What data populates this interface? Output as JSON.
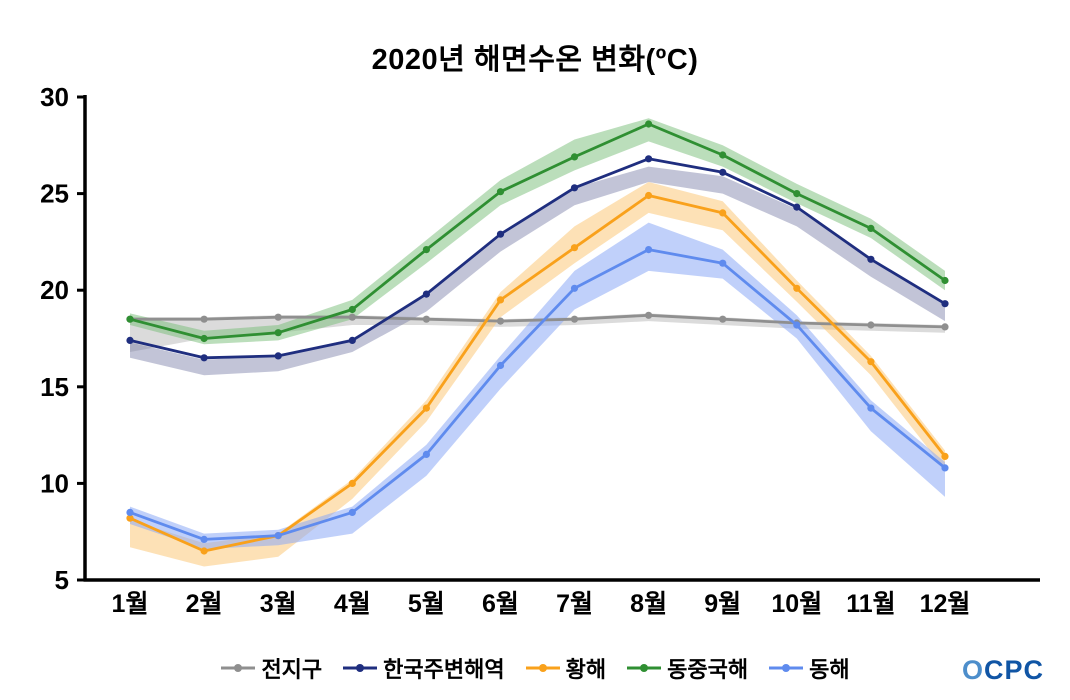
{
  "title": "2020년 해면수온 변화(ºC)",
  "logo": {
    "text": "OCPC",
    "color": "#1055a5"
  },
  "chart_data": {
    "type": "line",
    "title": "2020년 해면수온 변화(ºC)",
    "xlabel": "",
    "ylabel": "",
    "ylim": [
      5,
      30
    ],
    "yticks": [
      5,
      10,
      15,
      20,
      25,
      30
    ],
    "grid": false,
    "legend_position": "bottom",
    "categories": [
      "1월",
      "2월",
      "3월",
      "4월",
      "5월",
      "6월",
      "7월",
      "8월",
      "9월",
      "10월",
      "11월",
      "12월"
    ],
    "series": [
      {
        "name": "전지구",
        "color": "#8f8f8f",
        "band_color": "rgba(160,160,160,0.38)",
        "values": [
          18.5,
          18.5,
          18.6,
          18.6,
          18.5,
          18.4,
          18.5,
          18.7,
          18.5,
          18.3,
          18.2,
          18.1
        ],
        "band_lower": [
          16.8,
          17.5,
          17.8,
          18.2,
          18.2,
          18.1,
          18.2,
          18.4,
          18.2,
          18.0,
          17.9,
          17.8
        ],
        "band_upper": [
          18.6,
          18.6,
          18.7,
          18.7,
          18.6,
          18.5,
          18.6,
          18.8,
          18.6,
          18.4,
          18.3,
          18.2
        ]
      },
      {
        "name": "한국주변해역",
        "color": "#1f2e7f",
        "band_color": "rgba(110,115,160,0.42)",
        "values": [
          17.4,
          16.5,
          16.6,
          17.4,
          19.8,
          22.9,
          25.3,
          26.8,
          26.1,
          24.3,
          21.6,
          19.3
        ],
        "band_lower": [
          16.5,
          15.6,
          15.8,
          16.8,
          18.9,
          22.0,
          24.4,
          25.6,
          25.0,
          23.3,
          20.7,
          18.4
        ],
        "band_upper": [
          17.3,
          16.4,
          16.6,
          17.5,
          19.7,
          22.8,
          25.3,
          26.4,
          25.9,
          24.2,
          21.6,
          19.3
        ]
      },
      {
        "name": "황해",
        "color": "#f9a11b",
        "band_color": "rgba(252,196,110,0.5)",
        "values": [
          8.2,
          6.5,
          7.3,
          10.0,
          13.9,
          19.5,
          22.2,
          24.9,
          24.0,
          20.1,
          16.3,
          11.4
        ],
        "band_lower": [
          6.7,
          5.7,
          6.2,
          9.2,
          13.2,
          18.6,
          21.4,
          24.0,
          23.1,
          19.4,
          15.6,
          10.7
        ],
        "band_upper": [
          8.1,
          6.9,
          7.4,
          10.2,
          14.3,
          19.9,
          23.3,
          25.6,
          24.6,
          20.5,
          16.6,
          11.7
        ]
      },
      {
        "name": "동중국해",
        "color": "#2f8f32",
        "band_color": "rgba(120,190,120,0.5)",
        "values": [
          18.5,
          17.5,
          17.8,
          19.0,
          22.1,
          25.1,
          26.9,
          28.6,
          27.0,
          25.0,
          23.2,
          20.5
        ],
        "band_lower": [
          18.2,
          17.2,
          17.4,
          18.5,
          21.4,
          24.4,
          26.2,
          27.7,
          26.4,
          24.5,
          22.7,
          20.0
        ],
        "band_upper": [
          18.8,
          17.9,
          18.2,
          19.5,
          22.6,
          25.7,
          27.8,
          28.9,
          27.5,
          25.5,
          23.7,
          21.0
        ]
      },
      {
        "name": "동해",
        "color": "#5f8bee",
        "band_color": "rgba(140,170,245,0.55)",
        "values": [
          8.5,
          7.1,
          7.3,
          8.5,
          11.5,
          16.1,
          20.1,
          22.1,
          21.4,
          18.2,
          13.9,
          10.8
        ],
        "band_lower": [
          7.9,
          6.6,
          6.8,
          7.4,
          10.4,
          14.9,
          19.0,
          21.0,
          20.6,
          17.5,
          12.7,
          9.3
        ],
        "band_upper": [
          8.8,
          7.4,
          7.6,
          8.8,
          12.0,
          16.6,
          21.0,
          23.5,
          22.1,
          18.7,
          14.3,
          11.1
        ]
      }
    ]
  }
}
